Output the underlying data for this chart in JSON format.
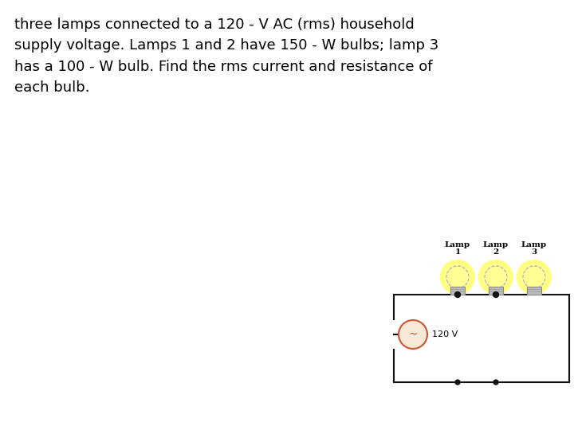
{
  "title_text": "three lamps connected to a 120 - V AC (rms) household\nsupply voltage. Lamps 1 and 2 have 150 - W bulbs; lamp 3\nhas a 100 - W bulb. Find the rms current and resistance of\neach bulb.",
  "background_color": "#ffffff",
  "text_color": "#000000",
  "text_fontsize": 13.0,
  "lamp_labels_top": [
    "Lamp",
    "Lamp",
    "Lamp"
  ],
  "lamp_labels_bot": [
    "1",
    "2",
    "3"
  ],
  "voltage_label": "120 V",
  "circuit_color": "#111111",
  "source_edge_color": "#cc5533",
  "source_face_color": "#f8e8d8",
  "glow_color_inner": "#ffff99",
  "glow_color_outer": "#ffff44",
  "bulb_edge_color": "#aaaaaa",
  "base_face_color": "#bbbbbb",
  "base_edge_color": "#888888",
  "tilde_color": "#cc5533",
  "dot_color": "#111111",
  "note_dot_color": "#111111"
}
